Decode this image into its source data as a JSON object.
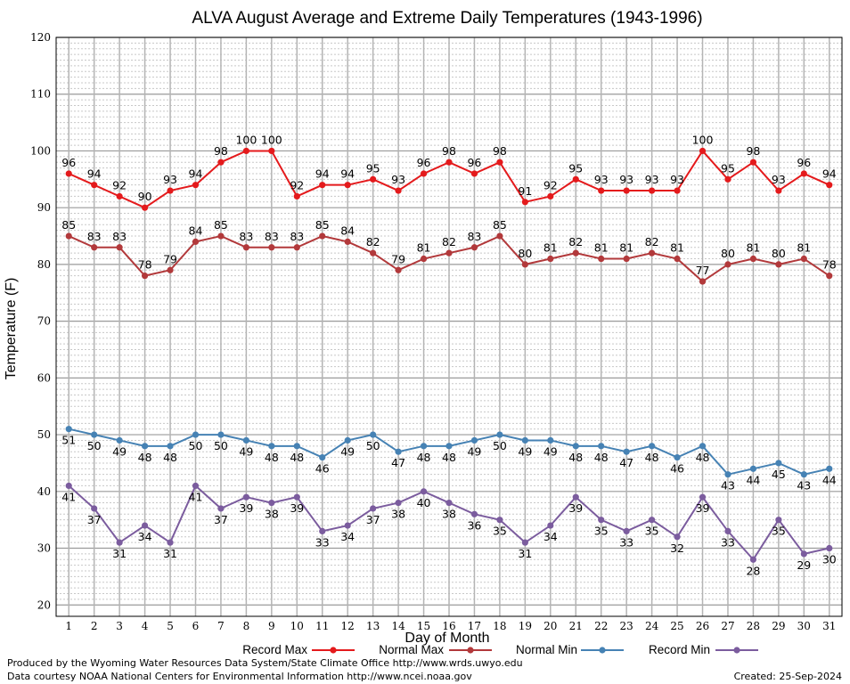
{
  "chart_data": {
    "type": "line",
    "title": "ALVA August Average and Extreme Daily Temperatures (1943-1996)",
    "xlabel": "Day of Month",
    "ylabel": "Temperature (F)",
    "ylim": [
      18,
      120
    ],
    "yticks": [
      20,
      30,
      40,
      50,
      60,
      70,
      80,
      90,
      100,
      110,
      120
    ],
    "xlim": [
      0.5,
      31.5
    ],
    "x": [
      1,
      2,
      3,
      4,
      5,
      6,
      7,
      8,
      9,
      10,
      11,
      12,
      13,
      14,
      15,
      16,
      17,
      18,
      19,
      20,
      21,
      22,
      23,
      24,
      25,
      26,
      27,
      28,
      29,
      30,
      31
    ],
    "grid": true,
    "legend_position": "bottom",
    "series": [
      {
        "name": "Record Max",
        "color": "#e41a1c",
        "label_pos": "above",
        "values": [
          96,
          94,
          92,
          90,
          93,
          94,
          98,
          100,
          100,
          92,
          94,
          94,
          95,
          93,
          96,
          98,
          96,
          98,
          91,
          92,
          95,
          93,
          93,
          93,
          93,
          100,
          95,
          98,
          93,
          96,
          94
        ]
      },
      {
        "name": "Normal Max",
        "color": "#b2393b",
        "label_pos": "above",
        "values": [
          85,
          83,
          83,
          78,
          79,
          84,
          85,
          83,
          83,
          83,
          85,
          84,
          82,
          79,
          81,
          82,
          83,
          85,
          80,
          81,
          82,
          81,
          81,
          82,
          81,
          77,
          80,
          81,
          80,
          81,
          78
        ]
      },
      {
        "name": "Normal Min",
        "color": "#4682b4",
        "label_pos": "below",
        "values": [
          51,
          50,
          49,
          48,
          48,
          50,
          50,
          49,
          48,
          48,
          46,
          49,
          50,
          47,
          48,
          48,
          49,
          50,
          49,
          49,
          48,
          48,
          47,
          48,
          46,
          48,
          43,
          44,
          45,
          43,
          44
        ]
      },
      {
        "name": "Record Min",
        "color": "#7b5c9e",
        "label_pos": "below",
        "values": [
          41,
          37,
          31,
          34,
          31,
          41,
          37,
          39,
          38,
          39,
          33,
          34,
          37,
          38,
          40,
          38,
          36,
          35,
          31,
          34,
          39,
          35,
          33,
          35,
          32,
          39,
          33,
          28,
          35,
          29,
          30
        ]
      }
    ]
  },
  "footer": {
    "left_line1": "Produced by the Wyoming Water Resources Data System/State Climate Office http://www.wrds.uwyo.edu",
    "left_line2": "Data courtesy NOAA National Centers for Environmental Information http://www.ncei.noaa.gov",
    "created": "Created:  25-Sep-2024"
  }
}
